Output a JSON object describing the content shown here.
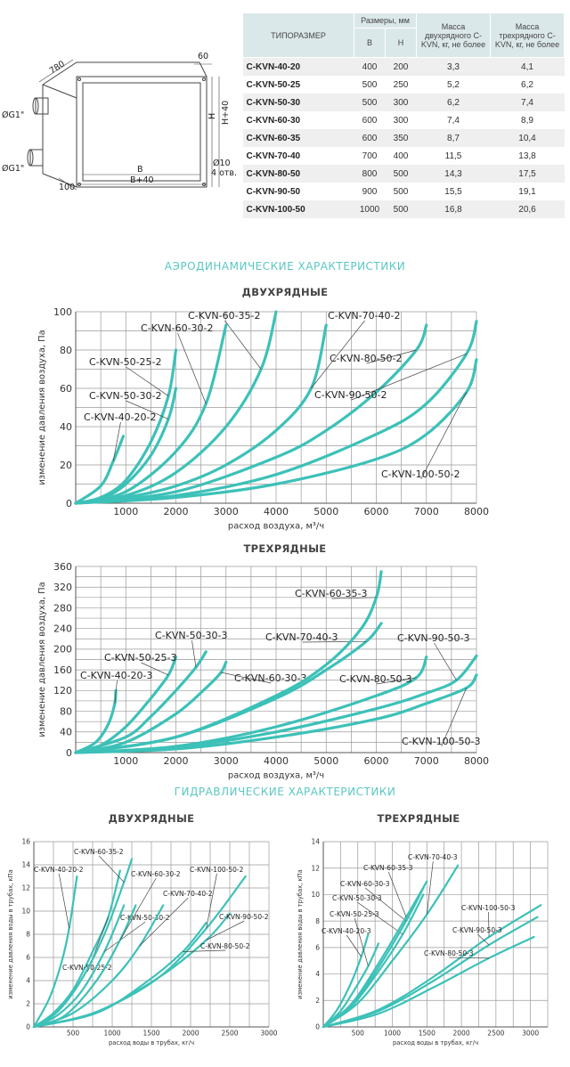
{
  "table": {
    "headers": {
      "model": "ТИПОРАЗМЕР",
      "dims": "Размеры, мм",
      "b": "B",
      "h": "H",
      "mass2": "Масса двухрядного C-KVN, кг, не более",
      "mass3": "Масса трехрядного C-KVN, кг, не более"
    },
    "rows": [
      {
        "model": "C-KVN-40-20",
        "b": "400",
        "h": "200",
        "m2": "3,3",
        "m3": "4,1"
      },
      {
        "model": "C-KVN-50-25",
        "b": "500",
        "h": "250",
        "m2": "5,2",
        "m3": "6,2"
      },
      {
        "model": "C-KVN-50-30",
        "b": "500",
        "h": "300",
        "m2": "6,2",
        "m3": "7,4"
      },
      {
        "model": "C-KVN-60-30",
        "b": "600",
        "h": "300",
        "m2": "7,4",
        "m3": "8,9"
      },
      {
        "model": "C-KVN-60-35",
        "b": "600",
        "h": "350",
        "m2": "8,7",
        "m3": "10,4"
      },
      {
        "model": "C-KVN-70-40",
        "b": "700",
        "h": "400",
        "m2": "11,5",
        "m3": "13,8"
      },
      {
        "model": "C-KVN-80-50",
        "b": "800",
        "h": "500",
        "m2": "14,3",
        "m3": "17,5"
      },
      {
        "model": "C-KVN-90-50",
        "b": "900",
        "h": "500",
        "m2": "15,5",
        "m3": "19,1"
      },
      {
        "model": "C-KVN-100-50",
        "b": "1000",
        "h": "500",
        "m2": "16,8",
        "m3": "20,6"
      }
    ]
  },
  "drawing": {
    "dims": [
      "780",
      "60",
      "ØG1\"",
      "ØG1\"",
      "H",
      "H+40",
      "B",
      "B+40",
      "Ø10",
      "4 отв.",
      "100"
    ]
  },
  "sections": {
    "aero": "АЭРОДИНАМИЧЕСКИЕ ХАРАКТЕРИСТИКИ",
    "hydro": "ГИДРАВЛИЧЕСКИЕ ХАРАКТЕРИСТИКИ"
  },
  "colors": {
    "curve": "#3cc1b8",
    "title": "#5bc7c2",
    "grid": "#9a9a9a",
    "axis": "#555555"
  },
  "chart_data": [
    {
      "id": "aero2",
      "type": "line",
      "title": "ДВУХРЯДНЫЕ",
      "xlabel": "расход воздуха, м³/ч",
      "ylabel": "изменение давления воздуха, Па",
      "xlim": [
        0,
        8000
      ],
      "ylim": [
        0,
        100
      ],
      "xticks": [
        1000,
        2000,
        3000,
        4000,
        5000,
        6000,
        7000,
        8000
      ],
      "xgrid": 500,
      "yticks": [
        0,
        20,
        40,
        60,
        80,
        100
      ],
      "ygrid": 10,
      "series": [
        {
          "name": "C-KVN-40-20-2",
          "x": [
            0,
            500,
            750,
            950
          ],
          "y": [
            0,
            9,
            22,
            35
          ]
        },
        {
          "name": "C-KVN-50-25-2",
          "x": [
            0,
            500,
            1000,
            1500,
            1850,
            2000
          ],
          "y": [
            0,
            3,
            12,
            32,
            56,
            80
          ]
        },
        {
          "name": "C-KVN-50-30-2",
          "x": [
            0,
            500,
            1000,
            1500,
            1850,
            2000
          ],
          "y": [
            0,
            2,
            10,
            25,
            44,
            60
          ]
        },
        {
          "name": "C-KVN-60-30-2",
          "x": [
            0,
            1000,
            2000,
            2600,
            3000
          ],
          "y": [
            0,
            6,
            27,
            52,
            93
          ]
        },
        {
          "name": "C-KVN-60-35-2",
          "x": [
            0,
            1000,
            2000,
            3000,
            3700,
            4000
          ],
          "y": [
            0,
            4,
            16,
            40,
            70,
            100
          ]
        },
        {
          "name": "C-KVN-70-40-2",
          "x": [
            0,
            1000,
            2000,
            3000,
            4000,
            4700,
            5000
          ],
          "y": [
            0,
            3,
            9,
            20,
            38,
            60,
            93
          ]
        },
        {
          "name": "C-KVN-80-50-2",
          "x": [
            0,
            2000,
            4000,
            5000,
            6000,
            6800,
            7000
          ],
          "y": [
            0,
            6,
            24,
            38,
            58,
            80,
            93
          ]
        },
        {
          "name": "C-KVN-90-50-2",
          "x": [
            0,
            2000,
            4000,
            6000,
            7000,
            7800,
            8000
          ],
          "y": [
            0,
            4,
            15,
            36,
            52,
            78,
            95
          ]
        },
        {
          "name": "C-KVN-100-50-2",
          "x": [
            0,
            2000,
            4000,
            6000,
            7000,
            7800,
            8000
          ],
          "y": [
            0,
            3,
            10,
            23,
            36,
            58,
            75
          ]
        }
      ]
    },
    {
      "id": "aero3",
      "type": "line",
      "title": "ТРЕХРЯДНЫЕ",
      "xlabel": "расход воздуха, м³/ч",
      "ylabel": "изменение давления воздуха, Па",
      "xlim": [
        0,
        8000
      ],
      "ylim": [
        0,
        360
      ],
      "xticks": [
        1000,
        2000,
        3000,
        4000,
        5000,
        6000,
        7000,
        8000
      ],
      "xgrid": 500,
      "yticks": [
        0,
        40,
        80,
        120,
        160,
        200,
        240,
        280,
        320,
        360
      ],
      "ygrid": 20,
      "series": [
        {
          "name": "C-KVN-40-20-3",
          "x": [
            0,
            400,
            650,
            780,
            800
          ],
          "y": [
            0,
            20,
            55,
            95,
            120
          ]
        },
        {
          "name": "C-KVN-50-25-3",
          "x": [
            0,
            500,
            1000,
            1500,
            1850,
            2000
          ],
          "y": [
            0,
            14,
            50,
            105,
            150,
            185
          ]
        },
        {
          "name": "C-KVN-50-30-3",
          "x": [
            0,
            1000,
            1500,
            2000,
            2400,
            2600
          ],
          "y": [
            0,
            30,
            70,
            120,
            165,
            195
          ]
        },
        {
          "name": "C-KVN-60-30-3",
          "x": [
            0,
            1000,
            2000,
            2600,
            2900,
            3000
          ],
          "y": [
            0,
            20,
            75,
            125,
            155,
            175
          ]
        },
        {
          "name": "C-KVN-70-40-3",
          "x": [
            0,
            2000,
            4000,
            5000,
            5800,
            6100
          ],
          "y": [
            0,
            30,
            105,
            160,
            215,
            250
          ]
        },
        {
          "name": "C-KVN-60-35-3",
          "x": [
            0,
            2000,
            4000,
            5000,
            5700,
            6000,
            6100
          ],
          "y": [
            0,
            30,
            110,
            170,
            240,
            300,
            350
          ]
        },
        {
          "name": "C-KVN-80-50-3",
          "x": [
            0,
            2000,
            4000,
            6000,
            6800,
            7000
          ],
          "y": [
            0,
            12,
            50,
            110,
            145,
            185
          ]
        },
        {
          "name": "C-KVN-90-50-3",
          "x": [
            0,
            2000,
            4000,
            6000,
            7000,
            7600,
            8000
          ],
          "y": [
            0,
            10,
            40,
            85,
            115,
            140,
            187
          ]
        },
        {
          "name": "C-KVN-100-50-3",
          "x": [
            0,
            2000,
            4000,
            6000,
            7000,
            7800,
            8000
          ],
          "y": [
            0,
            7,
            30,
            65,
            95,
            125,
            150
          ]
        }
      ]
    },
    {
      "id": "hydro2",
      "type": "line",
      "title": "ДВУХРЯДНЫЕ",
      "xlabel": "расход воды в трубах, кг/ч",
      "ylabel": "изменение давления воды в трубах, кПа",
      "xlim": [
        0,
        3000
      ],
      "ylim": [
        0,
        16
      ],
      "xticks": [
        500,
        1000,
        1500,
        2000,
        2500,
        3000
      ],
      "xgrid": 250,
      "yticks": [
        0,
        2,
        4,
        6,
        8,
        10,
        12,
        14,
        16
      ],
      "ygrid": 2,
      "series": [
        {
          "name": "C-KVN-40-20-2",
          "x": [
            0,
            200,
            350,
            450,
            550
          ],
          "y": [
            0,
            2.5,
            5.5,
            8.5,
            13
          ]
        },
        {
          "name": "C-KVN-50-25-2",
          "x": [
            0,
            250,
            500,
            750,
            950,
            1100
          ],
          "y": [
            0,
            1.2,
            3.2,
            6.5,
            9.5,
            13.5
          ]
        },
        {
          "name": "C-KVN-50-30-2",
          "x": [
            0,
            300,
            600,
            900,
            1150
          ],
          "y": [
            0,
            1,
            3,
            6.5,
            10.5
          ]
        },
        {
          "name": "C-KVN-60-35-2",
          "x": [
            0,
            300,
            600,
            900,
            1150,
            1250
          ],
          "y": [
            0,
            1.3,
            4,
            8,
            12.5,
            14.5
          ]
        },
        {
          "name": "C-KVN-60-30-2",
          "x": [
            0,
            400,
            800,
            1100,
            1300
          ],
          "y": [
            0,
            1,
            4,
            7.5,
            10.5
          ]
        },
        {
          "name": "C-KVN-70-40-2",
          "x": [
            0,
            500,
            1000,
            1350,
            1650
          ],
          "y": [
            0,
            1.2,
            4,
            7,
            10.5
          ]
        },
        {
          "name": "C-KVN-100-50-2",
          "x": [
            0,
            800,
            1600,
            2200,
            2700
          ],
          "y": [
            0,
            1.3,
            4.3,
            8.5,
            13
          ]
        },
        {
          "name": "C-KVN-90-50-2",
          "x": [
            0,
            800,
            1600,
            2200,
            2500
          ],
          "y": [
            0,
            1.3,
            4.3,
            7.5,
            9.8
          ]
        },
        {
          "name": "C-KVN-80-50-2",
          "x": [
            0,
            800,
            1400,
            1900,
            2200
          ],
          "y": [
            0,
            1.2,
            3.7,
            6.5,
            9
          ]
        }
      ]
    },
    {
      "id": "hydro3",
      "type": "line",
      "title": "ТРЕХРЯДНЫЕ",
      "xlabel": "расход воды в трубах, кг/ч",
      "ylabel": "изменение давления воды в трубах, кПа",
      "xlim": [
        0,
        3250
      ],
      "ylim": [
        0,
        14
      ],
      "xticks": [
        500,
        1000,
        1500,
        2000,
        2500,
        3000
      ],
      "xgrid": 250,
      "yticks": [
        0,
        2,
        4,
        6,
        8,
        10,
        12,
        14
      ],
      "ygrid": 2,
      "series": [
        {
          "name": "C-KVN-40-20-3",
          "x": [
            0,
            200,
            400,
            550,
            650
          ],
          "y": [
            0,
            1.3,
            3.3,
            5.3,
            7
          ]
        },
        {
          "name": "C-KVN-50-25-3",
          "x": [
            0,
            250,
            450,
            650,
            800
          ],
          "y": [
            0,
            1.2,
            2.8,
            4.6,
            6.3
          ]
        },
        {
          "name": "C-KVN-50-30-3",
          "x": [
            0,
            400,
            800,
            1150,
            1450
          ],
          "y": [
            0,
            1.5,
            4.2,
            7,
            10
          ]
        },
        {
          "name": "C-KVN-60-30-3",
          "x": [
            0,
            400,
            800,
            1200,
            1450
          ],
          "y": [
            0,
            1.6,
            4.5,
            8,
            10.5
          ]
        },
        {
          "name": "C-KVN-60-35-3",
          "x": [
            0,
            400,
            800,
            1200,
            1500
          ],
          "y": [
            0,
            1.7,
            4.8,
            8.3,
            11
          ]
        },
        {
          "name": "C-KVN-70-40-3",
          "x": [
            0,
            500,
            1000,
            1500,
            1950
          ],
          "y": [
            0,
            1.8,
            5,
            8.5,
            12.2
          ]
        },
        {
          "name": "C-KVN-100-50-3",
          "x": [
            0,
            800,
            1600,
            2400,
            3150
          ],
          "y": [
            0,
            1.3,
            3.8,
            6.8,
            9.2
          ]
        },
        {
          "name": "C-KVN-90-50-3",
          "x": [
            0,
            800,
            1600,
            2400,
            3100
          ],
          "y": [
            0,
            1.2,
            3.5,
            6.2,
            8.3
          ]
        },
        {
          "name": "C-KVN-80-50-3",
          "x": [
            0,
            800,
            1600,
            2400,
            3050
          ],
          "y": [
            0,
            1,
            3,
            5.2,
            6.8
          ]
        }
      ]
    }
  ]
}
